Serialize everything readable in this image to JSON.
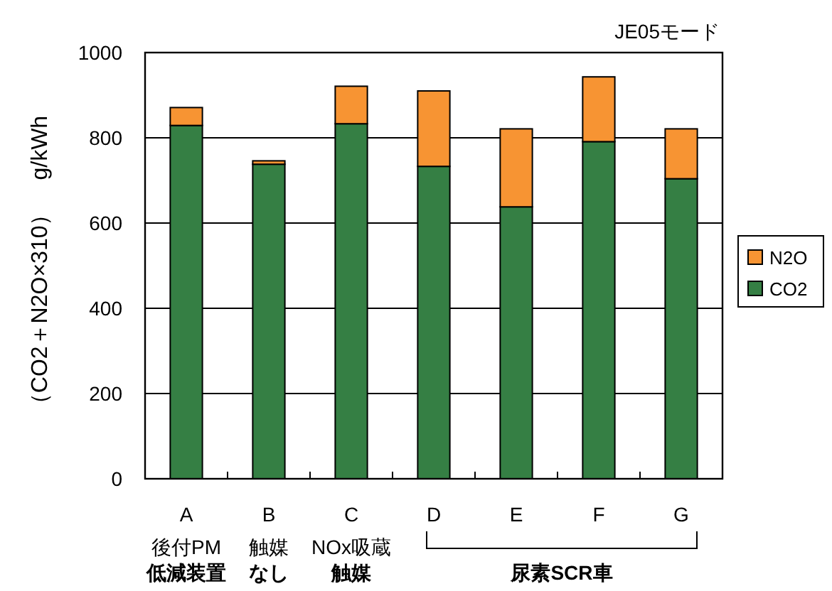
{
  "chart_data": {
    "type": "bar",
    "stacked": true,
    "title": "JE05モード",
    "ylabel": "（CO2＋N2O×310）　g/kWh",
    "categories": [
      "A\n後付PM**低減装置**",
      "B\n触媒**なし**",
      "C\nNOx吸蔵**触媒**",
      "D",
      "E",
      "F",
      "G"
    ],
    "series": [
      {
        "name": "CO2",
        "color": "#357f44",
        "values": [
          829,
          738,
          833,
          733,
          638,
          791,
          704
        ]
      },
      {
        "name": "N2O",
        "color": "#f79433",
        "values": [
          42,
          8,
          88,
          177,
          183,
          152,
          117
        ]
      }
    ],
    "ylim": [
      0,
      1000
    ],
    "yticks": [
      0,
      200,
      400,
      600,
      800,
      1000
    ],
    "grid": "y",
    "legend": "right",
    "annotations": [
      "尿素SCR車"
    ]
  }
}
